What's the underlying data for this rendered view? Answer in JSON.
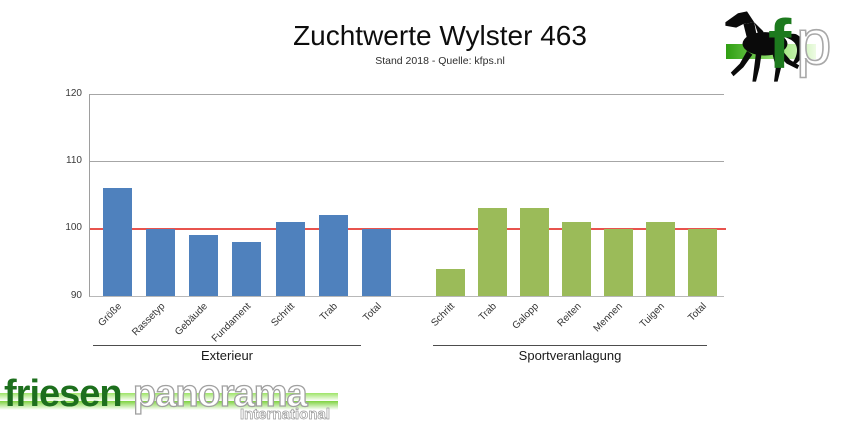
{
  "chart_data": {
    "type": "bar",
    "title": "Zuchtwerte Wylster 463",
    "subtitle": "Stand 2018 - Quelle: kfps.nl",
    "ylim": [
      90,
      120
    ],
    "yticks": [
      120,
      110,
      100,
      90
    ],
    "grid": true,
    "legend": "none",
    "reference_line": {
      "value": 100,
      "color": "#e8534e"
    },
    "groups": [
      {
        "label": "Exterieur",
        "color": "#4f81bd",
        "categories": [
          "Größe",
          "Rassetyp",
          "Gebäude",
          "Fundament",
          "Schritt",
          "Trab",
          "Total"
        ],
        "values": [
          106,
          100,
          99,
          98,
          101,
          102,
          100
        ]
      },
      {
        "label": "Sportveranlagung",
        "color": "#9bbb59",
        "categories": [
          "Schritt",
          "Trab",
          "Galopp",
          "Reiten",
          "Mennen",
          "Tuigen",
          "Total"
        ],
        "values": [
          94,
          103,
          103,
          101,
          100,
          101,
          100
        ]
      }
    ]
  },
  "logo_fp": {
    "f": "f",
    "p": "p",
    "f_color": "#1d7a1e",
    "band_color": "#2f9e12"
  },
  "logo_friesenpanorama": {
    "word1": "friesen",
    "word2": "panorama",
    "subtext": "International",
    "word1_color": "#1d6f1d"
  }
}
